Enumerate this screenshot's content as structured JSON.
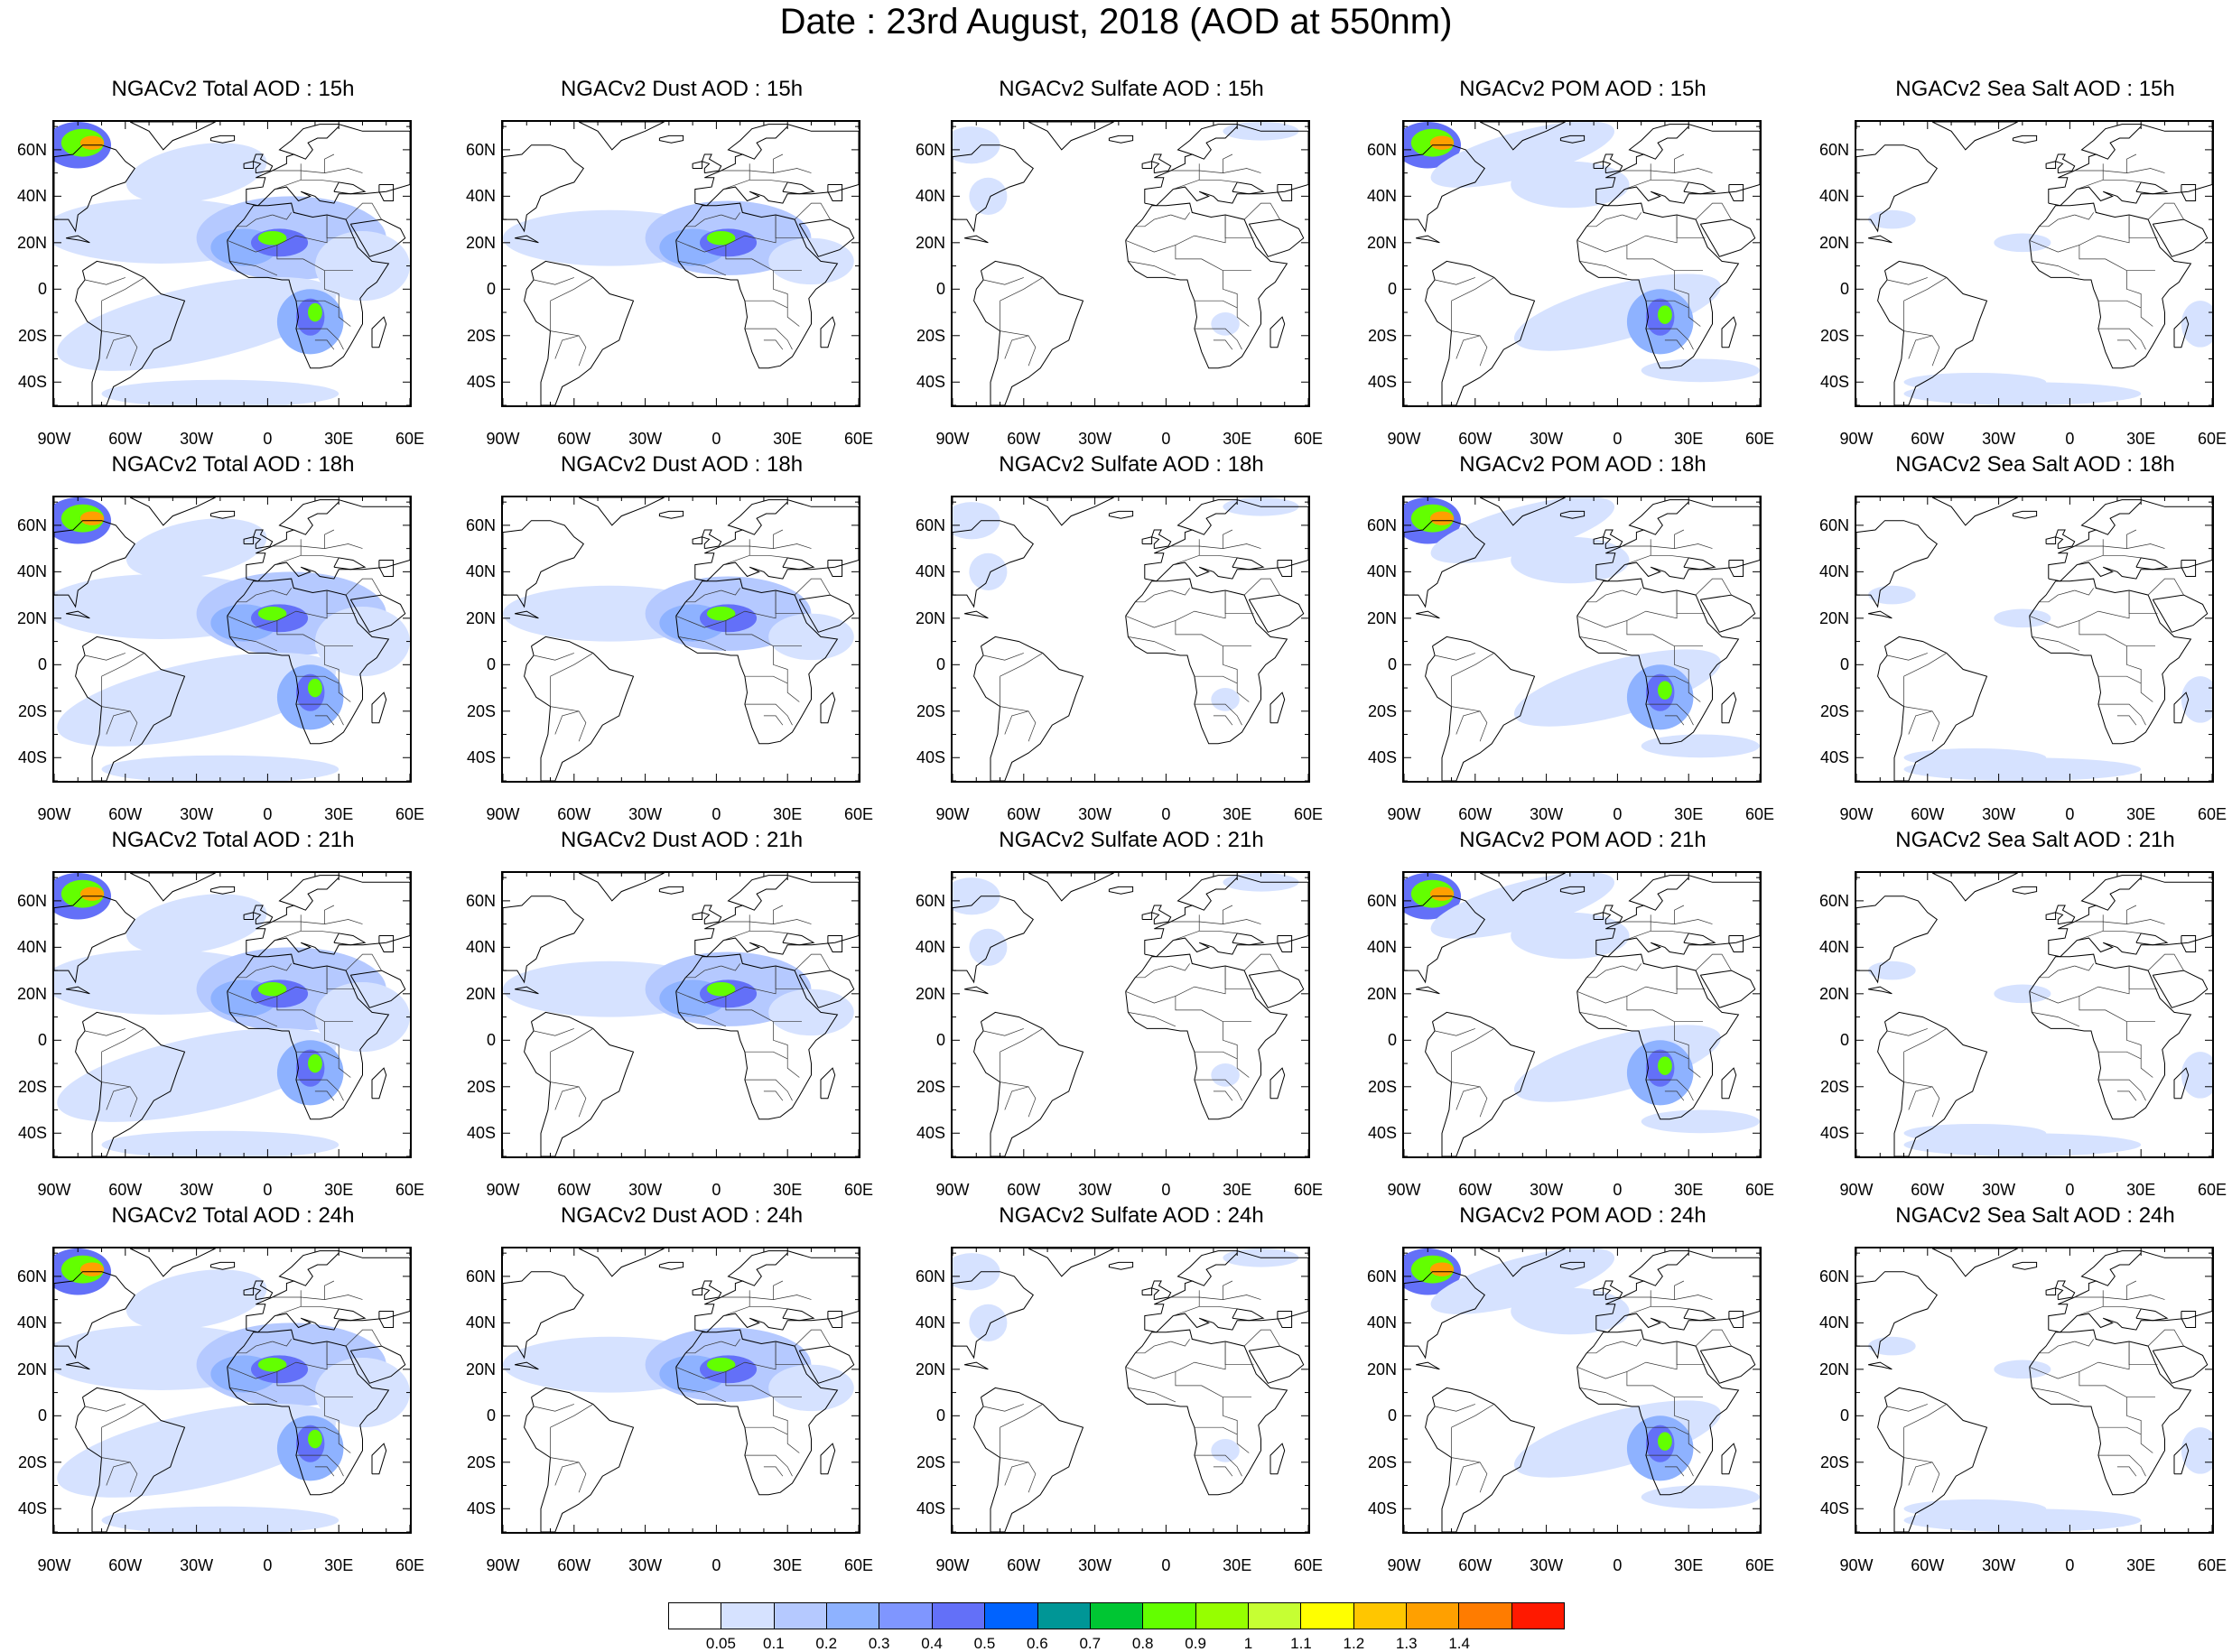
{
  "title": "Date : 23rd August, 2018 (AOD at 550nm)",
  "columns": [
    {
      "id": "total",
      "label": "NGACv2 Total AOD"
    },
    {
      "id": "dust",
      "label": "NGACv2 Dust AOD"
    },
    {
      "id": "sulfate",
      "label": "NGACv2 Sulfate AOD"
    },
    {
      "id": "pom",
      "label": "NGACv2 POM AOD"
    },
    {
      "id": "seasalt",
      "label": "NGACv2 Sea Salt AOD"
    }
  ],
  "panels": [
    {
      "species": "total",
      "title": "NGACv2 Total AOD : 15h"
    },
    {
      "species": "dust",
      "title": "NGACv2 Dust AOD : 15h"
    },
    {
      "species": "sulfate",
      "title": "NGACv2 Sulfate AOD : 15h"
    },
    {
      "species": "pom",
      "title": "NGACv2 POM AOD : 15h"
    },
    {
      "species": "seasalt",
      "title": "NGACv2 Sea Salt AOD : 15h"
    },
    {
      "species": "total",
      "title": "NGACv2 Total AOD : 18h"
    },
    {
      "species": "dust",
      "title": "NGACv2 Dust AOD : 18h"
    },
    {
      "species": "sulfate",
      "title": "NGACv2 Sulfate AOD : 18h"
    },
    {
      "species": "pom",
      "title": "NGACv2 POM AOD : 18h"
    },
    {
      "species": "seasalt",
      "title": "NGACv2 Sea Salt AOD : 18h"
    },
    {
      "species": "total",
      "title": "NGACv2 Total AOD : 21h"
    },
    {
      "species": "dust",
      "title": "NGACv2 Dust AOD : 21h"
    },
    {
      "species": "sulfate",
      "title": "NGACv2 Sulfate AOD : 21h"
    },
    {
      "species": "pom",
      "title": "NGACv2 POM AOD : 21h"
    },
    {
      "species": "seasalt",
      "title": "NGACv2 Sea Salt AOD : 21h"
    },
    {
      "species": "total",
      "title": "NGACv2 Total AOD : 24h"
    },
    {
      "species": "dust",
      "title": "NGACv2 Dust AOD : 24h"
    },
    {
      "species": "sulfate",
      "title": "NGACv2 Sulfate AOD : 24h"
    },
    {
      "species": "pom",
      "title": "NGACv2 POM AOD : 24h"
    },
    {
      "species": "seasalt",
      "title": "NGACv2 Sea Salt  AOD : 24h"
    }
  ],
  "forecast_hours": [
    "15h",
    "18h",
    "21h",
    "24h"
  ],
  "map": {
    "lon_range": [
      -90,
      60
    ],
    "lat_range": [
      -50,
      72
    ],
    "lon_ticks": [
      "90W",
      "60W",
      "30W",
      "0",
      "30E",
      "60E"
    ],
    "lat_ticks": [
      "60N",
      "40N",
      "20N",
      "0",
      "20S",
      "40S"
    ]
  },
  "colorbar": {
    "labels": [
      "0.05",
      "0.1",
      "0.2",
      "0.3",
      "0.4",
      "0.5",
      "0.6",
      "0.7",
      "0.8",
      "0.9",
      "1",
      "1.1",
      "1.2",
      "1.3",
      "1.4"
    ],
    "colors": [
      "#ffffff",
      "#d6e2ff",
      "#b5c9ff",
      "#8eb2ff",
      "#7f96ff",
      "#6370f8",
      "#0063ff",
      "#009696",
      "#00c633",
      "#63ff00",
      "#96ff00",
      "#c6ff33",
      "#ffff00",
      "#ffc600",
      "#ffa000",
      "#ff7c00",
      "#ff1900"
    ]
  }
}
